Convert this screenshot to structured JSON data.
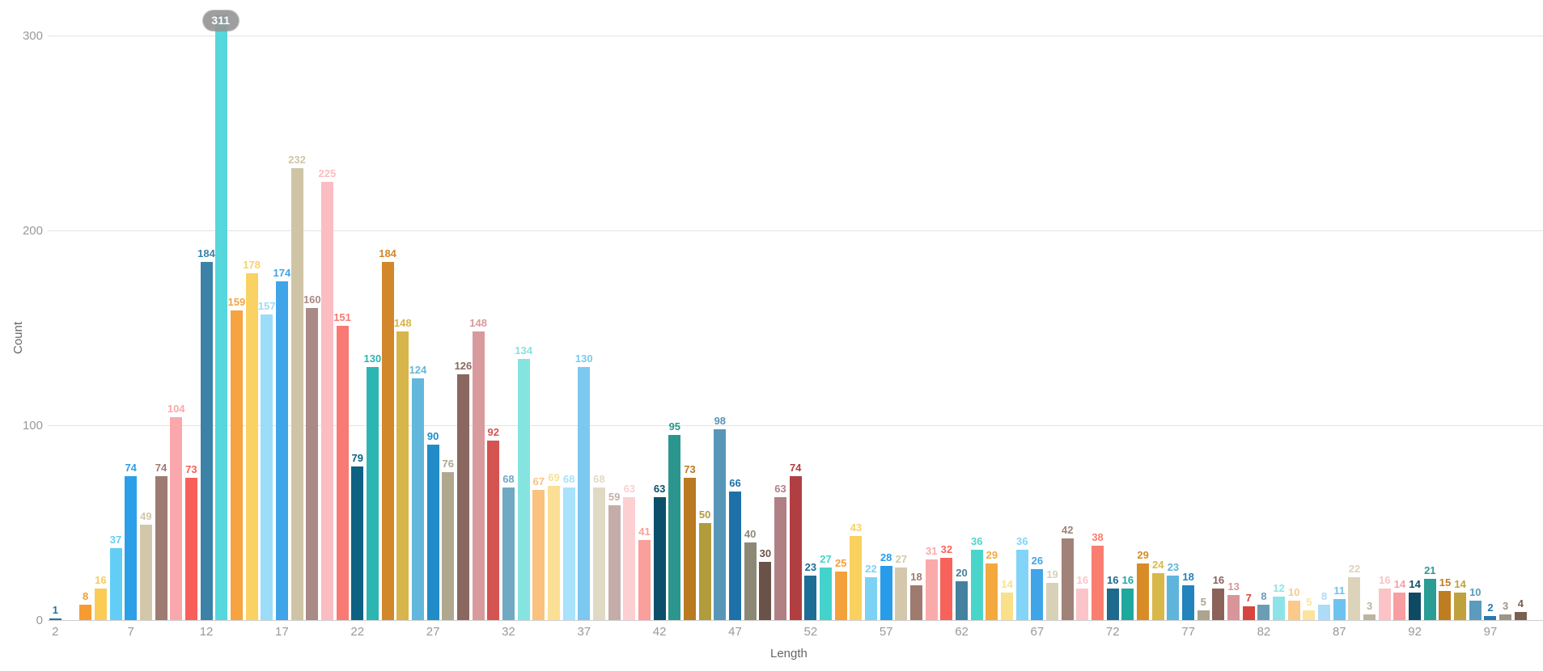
{
  "chart_data": {
    "type": "bar",
    "title": "",
    "xlabel": "Length",
    "ylabel": "Count",
    "ylim": [
      0,
      300
    ],
    "yticks": [
      0,
      100,
      200,
      300
    ],
    "xticks": [
      2,
      7,
      12,
      17,
      22,
      27,
      32,
      37,
      42,
      47,
      52,
      57,
      62,
      67,
      72,
      77,
      82,
      87,
      92,
      97
    ],
    "grid": true,
    "legend": "none",
    "x": [
      2,
      3,
      4,
      5,
      6,
      7,
      8,
      9,
      10,
      11,
      12,
      13,
      14,
      15,
      16,
      17,
      18,
      19,
      20,
      21,
      22,
      23,
      24,
      25,
      26,
      27,
      28,
      29,
      30,
      31,
      32,
      33,
      34,
      35,
      36,
      37,
      38,
      39,
      40,
      41,
      42,
      43,
      44,
      45,
      46,
      47,
      48,
      49,
      50,
      51,
      52,
      53,
      54,
      55,
      56,
      57,
      58,
      59,
      60,
      61,
      62,
      63,
      64,
      65,
      66,
      67,
      68,
      69,
      70,
      71,
      72,
      73,
      74,
      75,
      76,
      77,
      78,
      79,
      80,
      81,
      82,
      83,
      84,
      85,
      86,
      87,
      88,
      89,
      90,
      91,
      92,
      93,
      94,
      95,
      96,
      97,
      98,
      99
    ],
    "values": [
      1,
      0,
      8,
      16,
      37,
      74,
      49,
      74,
      104,
      73,
      184,
      311,
      159,
      178,
      157,
      174,
      232,
      160,
      225,
      151,
      79,
      130,
      184,
      148,
      124,
      90,
      76,
      126,
      148,
      92,
      68,
      134,
      67,
      69,
      68,
      130,
      68,
      59,
      63,
      41,
      63,
      95,
      73,
      50,
      98,
      66,
      40,
      30,
      63,
      74,
      23,
      27,
      25,
      43,
      22,
      28,
      27,
      18,
      31,
      32,
      20,
      36,
      29,
      14,
      36,
      26,
      19,
      42,
      16,
      38,
      16,
      16,
      29,
      24,
      23,
      18,
      5,
      16,
      13,
      7,
      8,
      12,
      10,
      5,
      8,
      11,
      22,
      3,
      16,
      14,
      14,
      21,
      15,
      14,
      10,
      2,
      3,
      4
    ],
    "colors": [
      "#24749C",
      "#52D7DC",
      "#F59B32",
      "#FACC55",
      "#63CEF5",
      "#2B9FE8",
      "#D2C7A8",
      "#9E7B72",
      "#FBA8AC",
      "#F95F5A",
      "#3C82A8",
      "#55D7DC",
      "#F5A441",
      "#FAD264",
      "#9BDCF8",
      "#3FA5E8",
      "#CFC5A6",
      "#A98A86",
      "#FBBDC2",
      "#F97A74",
      "#0D6284",
      "#2DB5B2",
      "#D1872A",
      "#D8B54A",
      "#62B8DC",
      "#218CC8",
      "#B0A88E",
      "#8A685F",
      "#D89A9C",
      "#D45452",
      "#6FA9C4",
      "#86E4E0",
      "#FAC27E",
      "#FBDF94",
      "#A8E2FB",
      "#7CC8F0",
      "#E0D9C4",
      "#C4ADA8",
      "#FCCFD2",
      "#FA9F9B",
      "#0C4F6B",
      "#2A968E",
      "#B97A20",
      "#B29B3D",
      "#5896B8",
      "#1D71A8",
      "#8D8875",
      "#6B5248",
      "#B08085",
      "#B13F41",
      "#1C6E96",
      "#44D3CC",
      "#F5A13B",
      "#FAD15E",
      "#7BD2F5",
      "#289CE8",
      "#D3C8AC",
      "#9F7A6F",
      "#FAAAAB",
      "#F9625A",
      "#44819F",
      "#4AD5CB",
      "#F4A93E",
      "#FAE088",
      "#82D4F8",
      "#3FA5E8",
      "#D8D1B8",
      "#A18278",
      "#FBC4C8",
      "#F97E70",
      "#1D6A8C",
      "#1FA89E",
      "#D98C26",
      "#D9B84A",
      "#5FB4DC",
      "#2383BC",
      "#ABA48E",
      "#8A625A",
      "#D8969A",
      "#D8453E",
      "#6B9DB4",
      "#8EE3E8",
      "#FBC98A",
      "#FCE49E",
      "#ACDCF8",
      "#6EC2F0",
      "#DCD4BA",
      "#BCB4A2",
      "#FBC3C6",
      "#F99EA0",
      "#0F4A64",
      "#2A9D94",
      "#BF7D22",
      "#BFA23C",
      "#5B9BBE",
      "#2878B0",
      "#9C9588",
      "#7A5F52"
    ],
    "highlight": {
      "x": 13,
      "value": 311,
      "badge_text": "311",
      "badge_bg": "#969696",
      "badge_text_color": "#ffffff"
    }
  },
  "axes": {
    "x_title": "Length",
    "y_title": "Count"
  },
  "style_colors": {
    "background": "#ffffff",
    "gridline": "#e3e3e3",
    "axis_line": "#cfcfcf",
    "tick_label": "#999999",
    "axis_title": "#666666"
  }
}
